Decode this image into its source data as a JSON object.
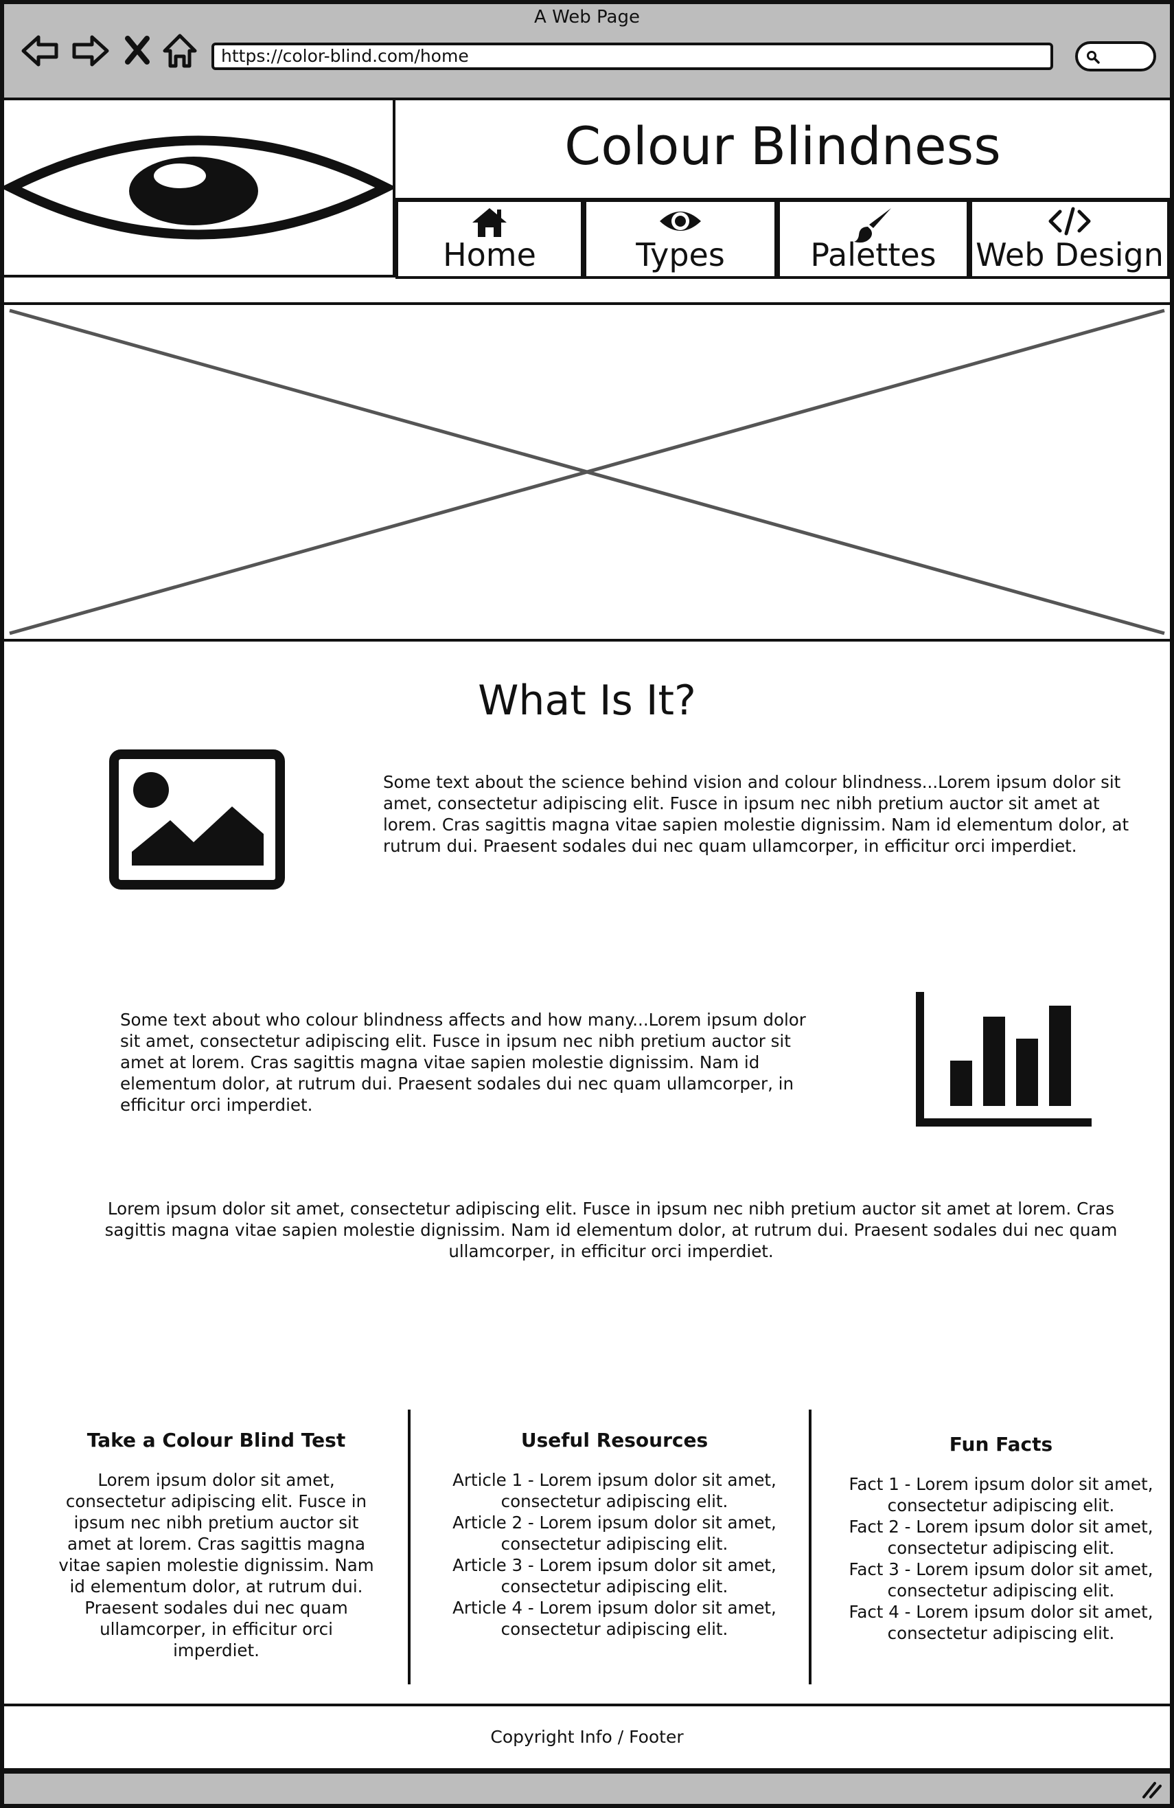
{
  "browser": {
    "window_title": "A Web Page",
    "url": "https://color-blind.com/home",
    "icons": [
      "back-icon",
      "forward-icon",
      "close-icon",
      "home-icon",
      "search-icon"
    ]
  },
  "header": {
    "site_title": "Colour Blindness",
    "logo_icon": "eye-icon",
    "nav": [
      {
        "label": "Home",
        "icon": "house-icon"
      },
      {
        "label": "Types",
        "icon": "eye-icon"
      },
      {
        "label": "Palettes",
        "icon": "paintbrush-icon"
      },
      {
        "label": "Web Design",
        "icon": "code-icon"
      }
    ]
  },
  "hero": {
    "icon": "image-placeholder"
  },
  "main": {
    "heading": "What Is It?",
    "para1": "Some text about the science behind vision and colour blindness...Lorem ipsum dolor sit amet, consectetur adipiscing elit. Fusce in ipsum nec nibh pretium auctor sit amet at lorem. Cras sagittis magna vitae sapien molestie dignissim. Nam id elementum dolor, at rutrum dui. Praesent sodales dui nec quam ullamcorper, in efficitur orci imperdiet.",
    "para2": "Some text about who colour blindness affects and how many...Lorem ipsum dolor sit amet, consectetur adipiscing elit. Fusce in ipsum nec nibh pretium auctor sit amet at lorem. Cras sagittis magna vitae sapien molestie dignissim. Nam id elementum dolor, at rutrum dui. Praesent sodales dui nec quam ullamcorper, in efficitur orci imperdiet.",
    "para3": "Lorem ipsum dolor sit amet, consectetur adipiscing elit. Fusce in ipsum nec nibh pretium auctor sit amet at lorem. Cras sagittis magna vitae sapien molestie dignissim. Nam id elementum dolor, at rutrum dui. Praesent sodales dui nec quam ullamcorper, in efficitur orci imperdiet."
  },
  "columns": {
    "test": {
      "title": "Take a Colour Blind Test",
      "body": "Lorem ipsum dolor sit amet, consectetur adipiscing elit. Fusce in ipsum nec nibh pretium auctor sit amet at lorem. Cras sagittis magna vitae sapien molestie dignissim. Nam id elementum dolor, at rutrum dui. Praesent sodales dui nec quam ullamcorper, in efficitur orci imperdiet."
    },
    "resources": {
      "title": "Useful Resources",
      "items": [
        "Article 1 - Lorem ipsum dolor sit amet, consectetur adipiscing elit.",
        "Article 2 - Lorem ipsum dolor sit amet, consectetur adipiscing elit.",
        "Article 3 - Lorem ipsum dolor sit amet, consectetur adipiscing elit.",
        "Article 4 - Lorem ipsum dolor sit amet, consectetur adipiscing elit."
      ]
    },
    "facts": {
      "title": "Fun Facts",
      "items": [
        "Fact 1 - Lorem ipsum dolor sit amet, consectetur adipiscing elit.",
        "Fact 2 - Lorem ipsum dolor sit amet, consectetur adipiscing elit.",
        "Fact 3 - Lorem ipsum dolor sit amet, consectetur adipiscing elit.",
        "Fact 4 - Lorem ipsum dolor sit amet, consectetur adipiscing elit."
      ]
    }
  },
  "footer": {
    "text": "Copyright Info / Footer"
  },
  "colors": {
    "chrome": "#bdbdbd",
    "ink": "#111111",
    "hero_lines": "#555555"
  }
}
